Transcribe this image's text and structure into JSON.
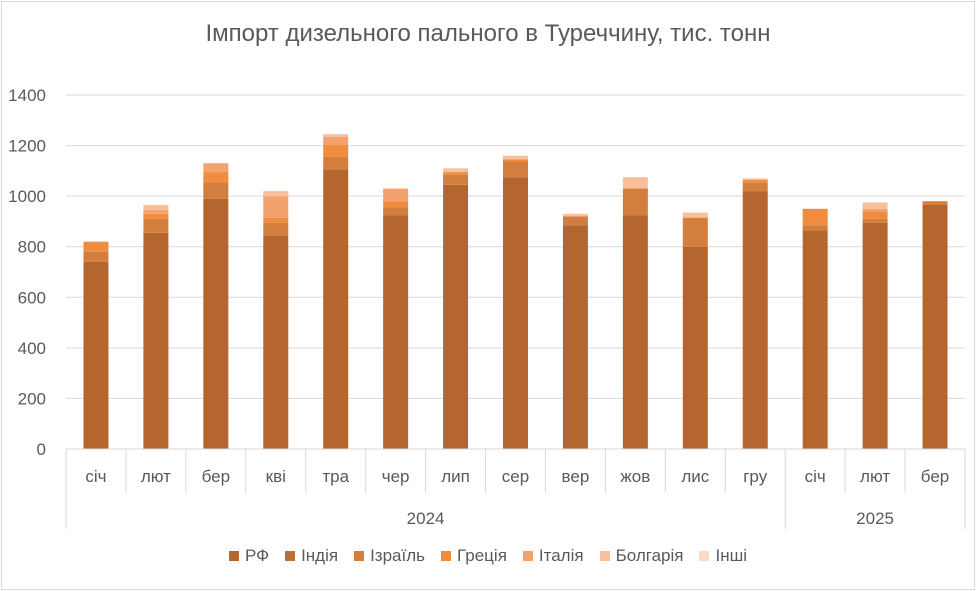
{
  "chart_data": {
    "type": "bar",
    "stacked": true,
    "title": "Імпорт дизельного пального в Туреччину, тис. тонн",
    "categories": [
      "січ",
      "лют",
      "бер",
      "кві",
      "тра",
      "чер",
      "лип",
      "сер",
      "вер",
      "жов",
      "лис",
      "гру",
      "січ",
      "лют",
      "бер"
    ],
    "year_groups": [
      {
        "label": "2024",
        "count": 12
      },
      {
        "label": "2025",
        "count": 3
      }
    ],
    "ylim": [
      0,
      1400
    ],
    "yticks": [
      "0",
      "200",
      "400",
      "600",
      "800",
      "1000",
      "1200",
      "1400"
    ],
    "ytick_values": [
      0,
      200,
      400,
      600,
      800,
      1000,
      1200,
      1400
    ],
    "grid": true,
    "legend_position": "bottom",
    "series": [
      {
        "name": "РФ",
        "color": "#b5662f",
        "values": [
          740,
          855,
          990,
          845,
          1105,
          925,
          1045,
          1075,
          885,
          925,
          800,
          1020,
          865,
          895,
          965
        ]
      },
      {
        "name": "Індія",
        "color": "#c06d34",
        "values": [
          0,
          0,
          0,
          0,
          0,
          0,
          0,
          0,
          0,
          0,
          0,
          0,
          0,
          0,
          0
        ]
      },
      {
        "name": "Ізраїль",
        "color": "#d47e3d",
        "values": [
          40,
          55,
          65,
          50,
          50,
          30,
          40,
          60,
          35,
          105,
          115,
          35,
          20,
          15,
          15
        ]
      },
      {
        "name": "Греція",
        "color": "#ef8c3f",
        "values": [
          40,
          20,
          40,
          20,
          50,
          25,
          10,
          10,
          0,
          0,
          0,
          10,
          65,
          30,
          0
        ]
      },
      {
        "name": "Італія",
        "color": "#f4a26d",
        "values": [
          0,
          15,
          35,
          85,
          30,
          50,
          0,
          0,
          0,
          0,
          0,
          0,
          0,
          10,
          0
        ]
      },
      {
        "name": "Болгарія",
        "color": "#f8bf9a",
        "values": [
          0,
          20,
          0,
          20,
          10,
          0,
          15,
          15,
          10,
          45,
          20,
          5,
          0,
          25,
          0
        ]
      },
      {
        "name": "Інші",
        "color": "#fbdac4",
        "values": [
          0,
          0,
          0,
          0,
          0,
          0,
          0,
          0,
          0,
          0,
          0,
          0,
          0,
          0,
          0
        ]
      }
    ]
  }
}
